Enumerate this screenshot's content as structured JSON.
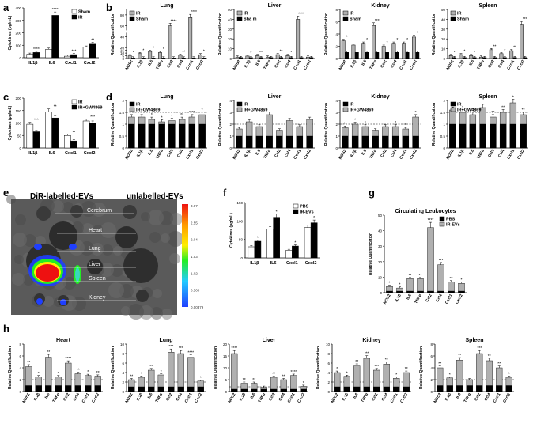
{
  "panel_labels": {
    "a": "a",
    "b": "b",
    "c": "c",
    "d": "d",
    "e": "e",
    "f": "f",
    "g": "g",
    "h": "h"
  },
  "imaging": {
    "left_title": "DiR-labelled-EVs",
    "right_title": "unlabelled-EVs",
    "organs": [
      "Cerebrum",
      "Heart",
      "Lung",
      "Liver",
      "Spleen",
      "Kidney"
    ],
    "scale_ticks": [
      "3.07",
      "2.55",
      "2.04",
      "1.53",
      "1.02",
      "0.500",
      "0.00379"
    ],
    "colors": {
      "blue": "#1f3fff",
      "green": "#22ee22",
      "red": "#ee1111",
      "yellow": "#ffee00"
    }
  },
  "colors": {
    "black": "#000000",
    "grey": "#b0b0b0",
    "white": "#ffffff"
  },
  "chart_data": [
    {
      "id": "a",
      "type": "bar",
      "ylabel": "Cytokines (pg/mL)",
      "categories": [
        "IL1β",
        "IL6",
        "Cxcl1",
        "Cxcl2"
      ],
      "ylim": [
        0,
        400
      ],
      "yticks": [
        0,
        100,
        200,
        300,
        400
      ],
      "series": [
        {
          "name": "Sham",
          "fill": "white",
          "values": [
            28,
            68,
            12,
            85
          ]
        },
        {
          "name": "IR",
          "fill": "black",
          "values": [
            42,
            340,
            25,
            115
          ]
        }
      ],
      "sig": [
        "****",
        "****",
        "***",
        "**"
      ],
      "legend": "top-right"
    },
    {
      "id": "b1",
      "type": "bar",
      "title": "Lung",
      "ylabel": "Relative Quantification",
      "categories": [
        "NOS2",
        "IL1β",
        "IL6",
        "TNFα",
        "Ccl2",
        "Ccl4",
        "Cxcl1",
        "Cxcl2"
      ],
      "ylim": [
        0,
        90
      ],
      "yticks": [
        0,
        5,
        10,
        15,
        20,
        40,
        60,
        80
      ],
      "broken": true,
      "series": [
        {
          "name": "IR",
          "fill": "grey",
          "values": [
            5,
            9,
            13,
            11,
            60,
            6,
            75,
            7
          ]
        },
        {
          "name": "Sham",
          "fill": "black",
          "values": [
            1,
            1,
            1,
            1,
            1,
            1,
            1,
            1
          ]
        }
      ],
      "sig": [
        "*",
        "*",
        "*",
        "*",
        "****",
        "**",
        "****",
        "*"
      ],
      "legend": "top-left"
    },
    {
      "id": "b2",
      "type": "bar",
      "title": "Liver",
      "ylabel": "Relative Quantification",
      "categories": [
        "NOS2",
        "IL1β",
        "IL6",
        "TNFα",
        "Ccl2",
        "Ccl4",
        "Cxcl1",
        "Cxcl2"
      ],
      "ylim": [
        0,
        50
      ],
      "yticks": [
        0,
        10,
        20,
        30,
        40,
        50
      ],
      "series": [
        {
          "name": "IR",
          "fill": "grey",
          "values": [
            1.5,
            2.5,
            3,
            1.5,
            4,
            3,
            40,
            1.5
          ]
        },
        {
          "name": "Sha m",
          "fill": "black",
          "values": [
            1,
            1,
            1,
            1,
            1,
            1,
            1,
            1
          ]
        }
      ],
      "sig": [
        "",
        "*",
        "***",
        "",
        "**",
        "*",
        "****",
        ""
      ],
      "legend": "top-left"
    },
    {
      "id": "b3",
      "type": "bar",
      "title": "Kidney",
      "ylabel": "Relative Quantification",
      "categories": [
        "NOS2",
        "IL1β",
        "IL6",
        "TNFα",
        "Ccl2",
        "Ccl4",
        "Cxcl1",
        "Cxcl2"
      ],
      "ylim": [
        0,
        8
      ],
      "yticks": [
        0,
        2,
        4,
        6,
        8
      ],
      "series": [
        {
          "name": "IR",
          "fill": "grey",
          "values": [
            2.9,
            2.2,
            2.5,
            5.4,
            2,
            2.5,
            2.5,
            3.5
          ]
        },
        {
          "name": "Sham",
          "fill": "black",
          "values": [
            1,
            1,
            1,
            1,
            1,
            1,
            1,
            1
          ]
        }
      ],
      "sig": [
        "*",
        "",
        "*",
        "***",
        "*",
        "*",
        "*",
        "*"
      ],
      "legend": "top-left"
    },
    {
      "id": "b4",
      "type": "bar",
      "title": "Spleen",
      "ylabel": "Relative Quantification",
      "categories": [
        "NOS2",
        "IL1β",
        "IL6",
        "TNFα",
        "Ccl2",
        "Ccl4",
        "Cxcl1",
        "Cxcl2"
      ],
      "ylim": [
        0,
        50
      ],
      "yticks": [
        0,
        10,
        20,
        30,
        40,
        50
      ],
      "series": [
        {
          "name": "IR",
          "fill": "grey",
          "values": [
            3,
            4,
            3,
            1.5,
            9,
            5,
            8,
            35
          ]
        },
        {
          "name": "Sham",
          "fill": "black",
          "values": [
            1,
            1,
            1,
            1,
            1,
            1,
            1,
            1
          ]
        }
      ],
      "sig": [
        "*",
        "*",
        "*",
        "",
        "**",
        "*",
        "**",
        "***"
      ],
      "legend": "top-left"
    },
    {
      "id": "c",
      "type": "bar",
      "ylabel": "Cytokines (pg/mL)",
      "categories": [
        "IL1β",
        "IL6",
        "Cxcl1",
        "Cxcl2"
      ],
      "ylim": [
        0,
        200
      ],
      "yticks": [
        0,
        50,
        100,
        150,
        200
      ],
      "series": [
        {
          "name": "IR",
          "fill": "white",
          "values": [
            95,
            145,
            50,
            108
          ]
        },
        {
          "name": "IR+GW4869",
          "fill": "black",
          "values": [
            65,
            120,
            28,
            100
          ]
        }
      ],
      "sig": [
        "***",
        "**",
        "**",
        "***"
      ],
      "legend": "top-right"
    },
    {
      "id": "d1",
      "type": "bar",
      "title": "Lung",
      "ylabel": "Relative Quantification",
      "categories": [
        "NOS2",
        "IL1β",
        "IL6",
        "TNFα",
        "Ccl2",
        "Ccl4",
        "Cxcl1",
        "Cxcl2"
      ],
      "ylim": [
        0,
        2
      ],
      "yticks": [
        0.0,
        0.5,
        1.0,
        1.5,
        2.0
      ],
      "dashed": 1.5,
      "series": [
        {
          "name": "IR",
          "fill": "black",
          "values": [
            1,
            1,
            1,
            1,
            1,
            1,
            1,
            1
          ]
        },
        {
          "name": "IR+GW4869",
          "fill": "grey",
          "values": [
            1.3,
            1.3,
            1.2,
            1.1,
            1.15,
            1.2,
            1.3,
            1.4
          ]
        }
      ],
      "sig": [
        "*",
        "*",
        "*",
        "*",
        "*",
        "**",
        "****",
        "*"
      ],
      "legend": "top-left"
    },
    {
      "id": "d2",
      "type": "bar",
      "title": "Liver",
      "ylabel": "Relative Quantification",
      "categories": [
        "NOS2",
        "IL1β",
        "IL6",
        "TNFα",
        "Ccl2",
        "Ccl4",
        "Cxcl1",
        "Cxcl2"
      ],
      "ylim": [
        0,
        4
      ],
      "yticks": [
        0,
        1,
        2,
        3,
        4
      ],
      "dashed": 2,
      "series": [
        {
          "name": "IR",
          "fill": "black",
          "values": [
            1,
            1,
            1,
            1,
            1,
            1,
            1,
            1
          ]
        },
        {
          "name": "IR+GW4869",
          "fill": "grey",
          "values": [
            1.6,
            2.2,
            1.8,
            2.8,
            1.5,
            2.3,
            1.8,
            2.4
          ]
        }
      ],
      "sig": [
        "",
        "",
        "",
        "",
        "",
        "",
        "",
        ""
      ],
      "legend": "top-left"
    },
    {
      "id": "d3",
      "type": "bar",
      "title": "Kidney",
      "ylabel": "Relative Quantification",
      "categories": [
        "NOS2",
        "IL1β",
        "IL6",
        "TNFα",
        "Ccl2",
        "Ccl4",
        "Cxcl1",
        "Cxcl2"
      ],
      "ylim": [
        0,
        4
      ],
      "yticks": [
        0,
        1,
        2,
        3,
        4
      ],
      "dashed": 2,
      "series": [
        {
          "name": "IR",
          "fill": "black",
          "values": [
            1,
            1,
            1,
            1,
            1,
            1,
            1,
            1
          ]
        },
        {
          "name": "IR+GW4869",
          "fill": "grey",
          "values": [
            1.7,
            2,
            1.8,
            1.5,
            1.8,
            1.8,
            1.6,
            2.6
          ]
        }
      ],
      "sig": [
        "**",
        "*",
        "*",
        "",
        "",
        "*",
        "*",
        "*"
      ],
      "legend": "top-left"
    },
    {
      "id": "d4",
      "type": "bar",
      "title": "Spleen",
      "ylabel": "Relative Quantification",
      "categories": [
        "NOS2",
        "IL1β",
        "IL6",
        "TNFα",
        "Ccl2",
        "Ccl4",
        "Cxcl1",
        "Cxcl2"
      ],
      "ylim": [
        0,
        2
      ],
      "yticks": [
        0.0,
        0.5,
        1.0,
        1.5,
        2.0
      ],
      "dashed": 1.5,
      "series": [
        {
          "name": "IR",
          "fill": "black",
          "values": [
            1,
            1,
            1,
            1,
            1,
            1,
            1,
            1
          ]
        },
        {
          "name": "IR+GW4869",
          "fill": "grey",
          "values": [
            1.6,
            1.5,
            1.4,
            1.7,
            1.3,
            1.5,
            1.9,
            1.4
          ]
        }
      ],
      "sig": [
        "**",
        "*",
        "**",
        "",
        "**",
        "**",
        "*",
        "**"
      ],
      "legend": "top-left"
    },
    {
      "id": "f",
      "type": "bar",
      "ylabel": "Cytokines (pg/mL)",
      "categories": [
        "IL1β",
        "IL6",
        "Cxcl1",
        "Cxcl2"
      ],
      "ylim": [
        0,
        150
      ],
      "yticks": [
        0,
        50,
        100,
        150
      ],
      "series": [
        {
          "name": "PBS",
          "fill": "white",
          "values": [
            30,
            78,
            20,
            82
          ]
        },
        {
          "name": "IR-EVs",
          "fill": "black",
          "values": [
            45,
            110,
            32,
            95
          ]
        }
      ],
      "sig": [
        "*",
        "*",
        "*",
        "*"
      ],
      "legend": "top-right"
    },
    {
      "id": "g",
      "type": "bar",
      "title": "Circulating Leukocytes",
      "ylabel": "Relative Quantification",
      "categories": [
        "NOS2",
        "IL1β",
        "IL6",
        "TNFα",
        "Ccl2",
        "Ccl4",
        "Cxcl1",
        "Cxcl2"
      ],
      "ylim": [
        0,
        50
      ],
      "yticks": [
        0,
        10,
        20,
        30,
        40,
        50
      ],
      "series": [
        {
          "name": "PBS",
          "fill": "black",
          "values": [
            1,
            1,
            1,
            1,
            1,
            1,
            1,
            1
          ]
        },
        {
          "name": "IR-EVs",
          "fill": "grey",
          "values": [
            4,
            3,
            9,
            9,
            42,
            18,
            7,
            6
          ]
        }
      ],
      "sig": [
        "*",
        "*",
        "**",
        "**",
        "****",
        "***",
        "**",
        "*"
      ],
      "legend": "top-right"
    },
    {
      "id": "h1",
      "type": "bar",
      "title": "Heart",
      "ylabel": "Relative Quantification",
      "categories": [
        "NOS2",
        "IL1β",
        "IL6",
        "TNFα",
        "Ccl2",
        "Ccl4",
        "Cxcl1",
        "Cxcl2"
      ],
      "ylim": [
        0,
        8
      ],
      "yticks": [
        0,
        2,
        4,
        6,
        8
      ],
      "dashed": 2,
      "series": [
        {
          "name": "",
          "fill": "black",
          "values": [
            1,
            1,
            1,
            1,
            1,
            1,
            1,
            1
          ]
        },
        {
          "name": "",
          "fill": "grey",
          "values": [
            4.2,
            2.5,
            5.8,
            2.5,
            4.8,
            3,
            2.7,
            2.6
          ]
        }
      ],
      "sig": [
        "**",
        "*",
        "**",
        "*",
        "****",
        "**",
        "*",
        "**"
      ]
    },
    {
      "id": "h2",
      "type": "bar",
      "title": "Lung",
      "ylabel": "Relative Quantification",
      "categories": [
        "NOS2",
        "IL1β",
        "IL6",
        "TNFα",
        "Ccl2",
        "Ccl4",
        "Cxcl1",
        "Cxcl2"
      ],
      "ylim": [
        0,
        10
      ],
      "yticks": [
        0,
        2,
        4,
        6,
        8,
        10
      ],
      "dashed": 2,
      "series": [
        {
          "name": "",
          "fill": "black",
          "values": [
            1,
            1,
            1,
            1,
            1,
            1,
            1,
            1
          ]
        },
        {
          "name": "",
          "fill": "grey",
          "values": [
            2.5,
            3,
            4.5,
            3.5,
            8.3,
            8,
            7.2,
            2.2
          ]
        }
      ],
      "sig": [
        "**",
        "*",
        "**",
        "*",
        "***",
        "***",
        "****",
        "*"
      ]
    },
    {
      "id": "h3",
      "type": "bar",
      "title": "Liver",
      "ylabel": "Relative Quantification",
      "categories": [
        "NOS2",
        "IL1β",
        "IL6",
        "TNFα",
        "Ccl2",
        "Ccl4",
        "Cxcl1",
        "Cxcl2"
      ],
      "ylim": [
        0,
        20
      ],
      "yticks": [
        0,
        5,
        10,
        15,
        20
      ],
      "dashed": 2,
      "series": [
        {
          "name": "",
          "fill": "black",
          "values": [
            1,
            1,
            1,
            1,
            1,
            1,
            1,
            1
          ]
        },
        {
          "name": "",
          "fill": "grey",
          "values": [
            16,
            3.5,
            3.5,
            1.8,
            6,
            5,
            6.8,
            2.2
          ]
        }
      ],
      "sig": [
        "****",
        "**",
        "**",
        "",
        "**",
        "**",
        "****",
        "*"
      ]
    },
    {
      "id": "h4",
      "type": "bar",
      "title": "Kidney",
      "ylabel": "Relative Quantification",
      "categories": [
        "NOS2",
        "IL1β",
        "IL6",
        "TNFα",
        "Ccl2",
        "Ccl4",
        "Cxcl1",
        "Cxcl2"
      ],
      "ylim": [
        0,
        10
      ],
      "yticks": [
        0,
        2,
        4,
        6,
        8,
        10
      ],
      "dashed": 2,
      "series": [
        {
          "name": "",
          "fill": "black",
          "values": [
            1,
            1,
            1,
            1,
            1,
            1,
            1,
            1
          ]
        },
        {
          "name": "",
          "fill": "grey",
          "values": [
            4,
            3.2,
            5.4,
            7,
            4.5,
            5.8,
            2.8,
            4
          ]
        }
      ],
      "sig": [
        "*",
        "*",
        "**",
        "***",
        "***",
        "**",
        "*",
        "**"
      ]
    },
    {
      "id": "h5",
      "type": "bar",
      "title": "Spleen",
      "ylabel": "Relative Quantification",
      "categories": [
        "NOS2",
        "IL1β",
        "IL6",
        "TNFα",
        "Ccl2",
        "Ccl4",
        "Cxcl1",
        "Cxcl2"
      ],
      "ylim": [
        0,
        8
      ],
      "yticks": [
        0,
        2,
        4,
        6,
        8
      ],
      "dashed": 2,
      "series": [
        {
          "name": "",
          "fill": "black",
          "values": [
            1,
            1,
            1,
            1,
            1,
            1,
            1,
            1
          ]
        },
        {
          "name": "",
          "fill": "grey",
          "values": [
            4,
            2.3,
            5.3,
            2,
            6.4,
            5.2,
            4,
            2.4
          ]
        }
      ],
      "sig": [
        "**",
        "*",
        "**",
        "",
        "***",
        "**",
        "**",
        "*"
      ]
    }
  ]
}
